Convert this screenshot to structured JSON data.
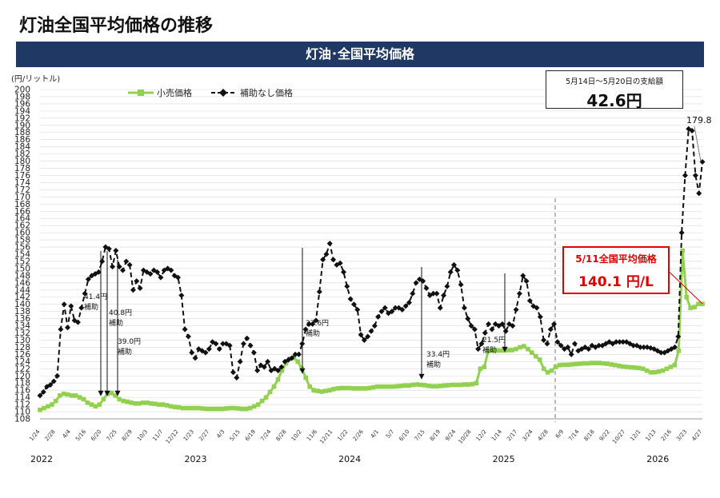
{
  "header": {
    "title": "灯油全国平均価格の推移",
    "band_title": "灯油･全国平均価格"
  },
  "unit_label": "(円/リットル)",
  "payment": {
    "label": "5月14日～5月20日の支給額",
    "value": "42.6円"
  },
  "current_price": {
    "label": "5/11全国平均価格",
    "value": "140.1 円/L"
  },
  "colors": {
    "retail": "#92d050",
    "no_subsidy": "#111111",
    "band": "#1f3864",
    "highlight": "#e00000"
  },
  "chart_data": {
    "type": "line",
    "ylim": [
      108,
      200
    ],
    "y_ticks": [
      108,
      110,
      112,
      114,
      116,
      118,
      120,
      122,
      124,
      126,
      128,
      130,
      132,
      134,
      136,
      138,
      140,
      142,
      144,
      146,
      148,
      150,
      152,
      154,
      156,
      158,
      160,
      162,
      164,
      166,
      168,
      170,
      172,
      174,
      176,
      178,
      180,
      182,
      184,
      186,
      188,
      190,
      192,
      194,
      196,
      198,
      200
    ],
    "x_tick_labels": [
      "1/24",
      "2/28",
      "4/4",
      "5/16",
      "6/20",
      "7/25",
      "8/29",
      "10/3",
      "11/7",
      "12/12",
      "1/23",
      "2/27",
      "4/3",
      "5/15",
      "6/19",
      "7/24",
      "8/28",
      "10/2",
      "11/6",
      "12/11",
      "1/22",
      "2/26",
      "4/1",
      "5/7",
      "6/10",
      "7/15",
      "8/19",
      "9/24",
      "10/28",
      "12/2",
      "1/14",
      "2/17",
      "3/24",
      "4/28",
      "6/9",
      "7/14",
      "8/18",
      "9/22",
      "10/27",
      "12/1",
      "1/13",
      "2/16",
      "3/23",
      "4/27"
    ],
    "year_labels": [
      {
        "label": "2022",
        "tick": 0
      },
      {
        "label": "2023",
        "tick": 10
      },
      {
        "label": "2024",
        "tick": 20
      },
      {
        "label": "2025",
        "tick": 30
      },
      {
        "label": "2026",
        "tick": 40
      }
    ],
    "legend": "top-left",
    "grid": true,
    "series": [
      {
        "name": "小売価格",
        "values": [
          110.5,
          111.0,
          111.5,
          112.0,
          113.0,
          114.5,
          115.0,
          114.8,
          114.5,
          114.5,
          114.0,
          113.5,
          112.5,
          112.0,
          111.5,
          112.0,
          113.5,
          115.0,
          115.2,
          114.5,
          113.5,
          113.0,
          112.8,
          112.5,
          112.3,
          112.3,
          112.5,
          112.5,
          112.3,
          112.2,
          112.0,
          112.0,
          111.8,
          111.5,
          111.3,
          111.2,
          111.0,
          111.0,
          111.0,
          111.0,
          111.0,
          110.9,
          110.8,
          110.8,
          110.8,
          110.8,
          110.8,
          110.9,
          111.0,
          111.0,
          110.9,
          110.8,
          110.8,
          111.0,
          111.5,
          112.0,
          113.0,
          114.0,
          115.5,
          117.0,
          119.0,
          121.5,
          123.5,
          124.8,
          125.0,
          124.0,
          122.0,
          119.5,
          117.0,
          116.0,
          115.8,
          115.6,
          115.8,
          116.0,
          116.3,
          116.5,
          116.6,
          116.6,
          116.6,
          116.5,
          116.5,
          116.5,
          116.5,
          116.6,
          116.8,
          117.0,
          117.0,
          117.0,
          117.0,
          117.0,
          117.1,
          117.2,
          117.3,
          117.3,
          117.5,
          117.6,
          117.5,
          117.4,
          117.2,
          117.1,
          117.1,
          117.2,
          117.3,
          117.4,
          117.5,
          117.5,
          117.5,
          117.6,
          117.6,
          117.7,
          118.0,
          122.0,
          122.5,
          127.0,
          127.1,
          127.1,
          127.1,
          127.1,
          127.2,
          127.2,
          127.5,
          128.0,
          128.3,
          127.5,
          126.5,
          125.5,
          124.5,
          122.0,
          121.0,
          121.5,
          122.5,
          123.0,
          123.1,
          123.1,
          123.2,
          123.3,
          123.4,
          123.5,
          123.5,
          123.6,
          123.6,
          123.6,
          123.5,
          123.4,
          123.2,
          123.0,
          122.8,
          122.6,
          122.5,
          122.4,
          122.3,
          122.2,
          122.0,
          121.5,
          121.0,
          121.0,
          121.2,
          121.5,
          122.0,
          122.5,
          123.0,
          127.0,
          155.0,
          142.0,
          139.0,
          139.2,
          140.1,
          140.1
        ]
      },
      {
        "name": "補助なし価格",
        "values": [
          114.5,
          115.5,
          117.0,
          117.5,
          118.5,
          120.0,
          133.0,
          140.0,
          133.5,
          139.5,
          135.5,
          135.0,
          139.0,
          143.0,
          147.0,
          148.0,
          148.5,
          149.0,
          152.0,
          156.0,
          155.5,
          150.5,
          155.0,
          150.5,
          149.5,
          152.0,
          151.0,
          144.0,
          146.5,
          144.5,
          149.5,
          149.0,
          148.5,
          149.5,
          149.0,
          147.5,
          149.5,
          150.0,
          149.5,
          148.0,
          147.5,
          142.5,
          133.0,
          131.0,
          126.5,
          125.0,
          127.5,
          127.0,
          126.5,
          127.5,
          129.5,
          129.0,
          127.5,
          129.0,
          129.0,
          128.5,
          121.0,
          119.5,
          124.0,
          129.0,
          130.5,
          128.5,
          126.5,
          121.5,
          123.0,
          122.5,
          124.0,
          121.5,
          122.0,
          121.5,
          122.5,
          124.0,
          124.5,
          125.0,
          126.0,
          126.0,
          129.0,
          133.0,
          134.5,
          134.5,
          135.5,
          143.5,
          152.5,
          154.0,
          157.0,
          152.5,
          151.0,
          151.5,
          149.0,
          145.0,
          141.5,
          140.0,
          138.5,
          131.5,
          130.0,
          131.0,
          132.5,
          134.0,
          136.5,
          138.0,
          139.0,
          137.5,
          138.0,
          139.0,
          139.0,
          138.5,
          139.5,
          140.5,
          143.0,
          146.0,
          147.0,
          146.5,
          144.5,
          142.5,
          143.0,
          143.0,
          139.0,
          142.5,
          145.0,
          149.0,
          151.0,
          149.5,
          145.5,
          139.0,
          136.0,
          134.0,
          133.0,
          127.5,
          129.0,
          132.0,
          134.5,
          133.0,
          134.5,
          134.0,
          134.5,
          132.5,
          134.5,
          134.0,
          138.5,
          143.0,
          148.0,
          146.5,
          141.0,
          139.5,
          139.0,
          136.5,
          130.0,
          129.0,
          133.0,
          134.5,
          129.5,
          128.5,
          127.5,
          128.0,
          126.0,
          129.0,
          127.0,
          127.5,
          128.0,
          127.5,
          128.5,
          128.0,
          128.5,
          128.5,
          129.0,
          129.5,
          129.0,
          129.5,
          129.5,
          129.5,
          129.5,
          129.0,
          128.5,
          128.5,
          128.0,
          128.0,
          128.0,
          127.8,
          127.5,
          127.0,
          126.5,
          126.5,
          127.0,
          127.5,
          128.0,
          131.0,
          160.0,
          176.0,
          189.0,
          188.5,
          176.0,
          171.0,
          179.8
        ]
      }
    ],
    "annotations": [
      {
        "lines": [
          "41.4円",
          "補助"
        ]
      },
      {
        "lines": [
          "40.8円",
          "補助"
        ]
      },
      {
        "lines": [
          "39.0円",
          "補助"
        ]
      },
      {
        "lines": [
          "37.6円",
          "補助"
        ]
      },
      {
        "lines": [
          "33.4円",
          "補助"
        ]
      },
      {
        "lines": [
          "21.5円",
          "補助"
        ]
      },
      {
        "lines": [
          "179.8"
        ]
      }
    ]
  }
}
